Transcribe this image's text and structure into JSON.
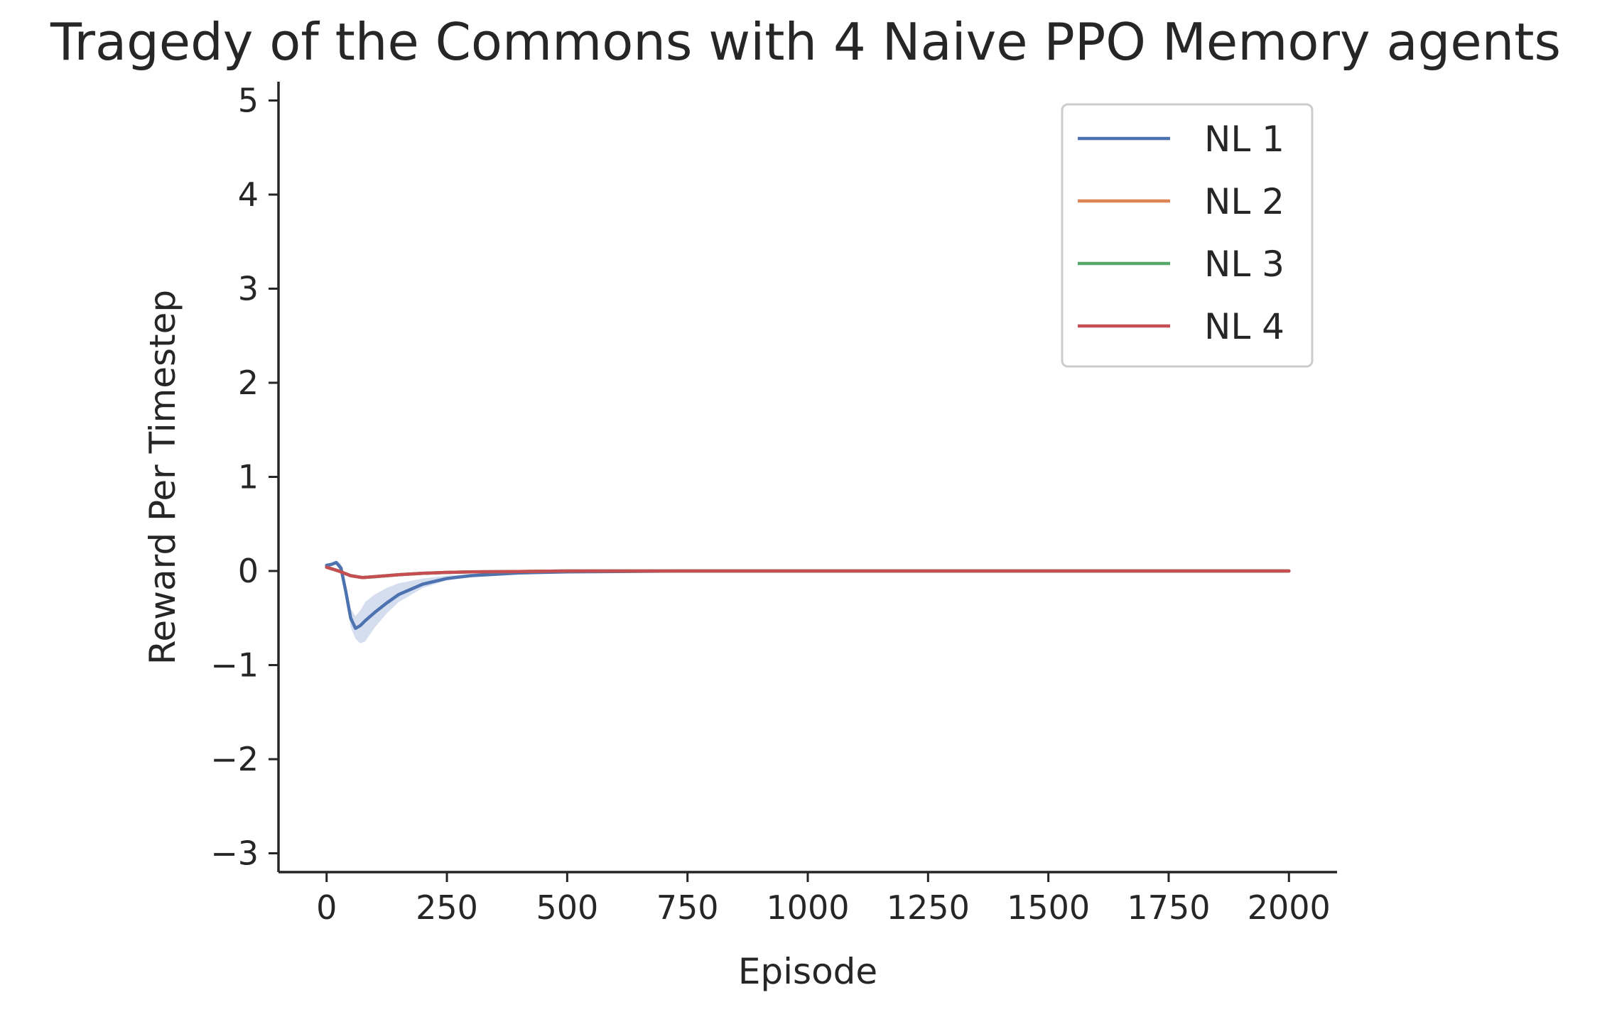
{
  "chart_data": {
    "type": "line",
    "title": "Tragedy of the Commons with 4 Naive PPO Memory agents",
    "xlabel": "Episode",
    "ylabel": "Reward Per Timestep",
    "xlim": [
      -100,
      2100
    ],
    "ylim": [
      -3.2,
      5.2
    ],
    "xticks": [
      0,
      250,
      500,
      750,
      1000,
      1250,
      1500,
      1750,
      2000
    ],
    "xtick_labels": [
      "0",
      "250",
      "500",
      "750",
      "1000",
      "1250",
      "1500",
      "1750",
      "2000"
    ],
    "yticks": [
      -3,
      -2,
      -1,
      0,
      1,
      2,
      3,
      4,
      5
    ],
    "ytick_labels": [
      "−3",
      "−2",
      "−1",
      "0",
      "1",
      "2",
      "3",
      "4",
      "5"
    ],
    "grid": false,
    "legend_position": "top-right",
    "series": [
      {
        "name": "NL 1",
        "color": "#4c72b0",
        "x": [
          0,
          10,
          20,
          30,
          40,
          50,
          60,
          70,
          80,
          100,
          125,
          150,
          200,
          250,
          300,
          400,
          500,
          750,
          1000,
          1250,
          1500,
          1750,
          2000
        ],
        "y": [
          0.06,
          0.07,
          0.09,
          0.03,
          -0.22,
          -0.5,
          -0.61,
          -0.58,
          -0.53,
          -0.44,
          -0.34,
          -0.25,
          -0.14,
          -0.08,
          -0.05,
          -0.02,
          -0.01,
          0.0,
          0.0,
          0.0,
          0.0,
          0.0,
          0.0
        ],
        "band_lower": [
          0.05,
          0.05,
          0.07,
          -0.02,
          -0.3,
          -0.6,
          -0.72,
          -0.77,
          -0.75,
          -0.6,
          -0.45,
          -0.33,
          -0.18,
          -0.1,
          -0.06,
          -0.03,
          -0.01,
          0.0,
          0.0,
          0.0,
          0.0,
          0.0,
          0.0
        ],
        "band_upper": [
          0.07,
          0.09,
          0.11,
          0.08,
          -0.15,
          -0.4,
          -0.48,
          -0.42,
          -0.33,
          -0.25,
          -0.18,
          -0.13,
          -0.08,
          -0.05,
          -0.03,
          -0.01,
          0.0,
          0.0,
          0.0,
          0.0,
          0.0,
          0.0,
          0.0
        ],
        "band_color": "#c7d3ea"
      },
      {
        "name": "NL 2",
        "color": "#dd8452",
        "x": [
          0,
          25,
          50,
          75,
          100,
          150,
          200,
          250,
          300,
          400,
          500,
          750,
          1000,
          1500,
          2000
        ],
        "y": [
          0.04,
          0.0,
          -0.05,
          -0.07,
          -0.06,
          -0.04,
          -0.025,
          -0.015,
          -0.01,
          -0.005,
          0.0,
          0.0,
          0.0,
          0.0,
          0.0
        ]
      },
      {
        "name": "NL 3",
        "color": "#55a868",
        "x": [
          0,
          25,
          50,
          75,
          100,
          150,
          200,
          250,
          300,
          400,
          500,
          750,
          1000,
          1500,
          2000
        ],
        "y": [
          0.04,
          0.0,
          -0.05,
          -0.07,
          -0.06,
          -0.04,
          -0.025,
          -0.015,
          -0.01,
          -0.005,
          0.0,
          0.0,
          0.0,
          0.0,
          0.0
        ]
      },
      {
        "name": "NL 4",
        "color": "#c44e52",
        "x": [
          0,
          25,
          50,
          75,
          100,
          150,
          200,
          250,
          300,
          400,
          500,
          750,
          1000,
          1500,
          2000
        ],
        "y": [
          0.04,
          0.0,
          -0.05,
          -0.07,
          -0.06,
          -0.04,
          -0.025,
          -0.015,
          -0.01,
          -0.005,
          0.0,
          0.0,
          0.0,
          0.0,
          0.0
        ]
      }
    ]
  }
}
